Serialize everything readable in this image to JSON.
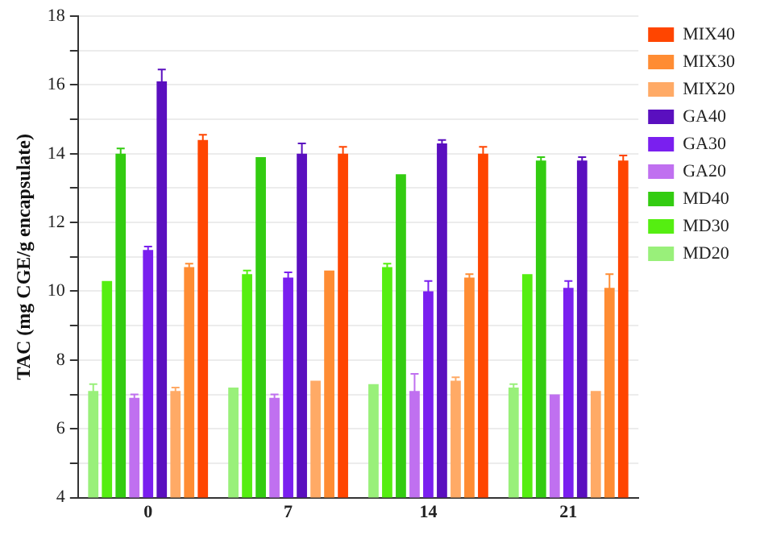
{
  "chart_data": {
    "type": "bar",
    "ylabel": "TAC (mg CGE/g encapsulate)",
    "categories": [
      "0",
      "7",
      "14",
      "21"
    ],
    "ylim": [
      4,
      18
    ],
    "yticks": [
      4,
      {
        "value": 5,
        "label": null
      },
      6,
      {
        "value": 7,
        "label": null
      },
      8,
      {
        "value": 9,
        "label": null
      },
      10,
      {
        "value": 11,
        "label": null
      },
      12,
      {
        "value": 13,
        "label": null
      },
      14,
      {
        "value": 15,
        "label": null
      },
      16,
      {
        "value": 17,
        "label": null
      },
      18
    ],
    "grid": "y",
    "legend": "top right",
    "series": [
      {
        "name": "MD20",
        "color": "#99f07a",
        "values": [
          7.1,
          7.2,
          7.3,
          7.2
        ],
        "errors": [
          0.2,
          null,
          null,
          0.1
        ]
      },
      {
        "name": "MD30",
        "color": "#55ee11",
        "values": [
          10.3,
          10.5,
          10.7,
          10.5
        ],
        "errors": [
          null,
          0.1,
          0.1,
          null
        ]
      },
      {
        "name": "MD40",
        "color": "#33cc11",
        "values": [
          14.0,
          13.9,
          13.4,
          13.8
        ],
        "errors": [
          0.15,
          null,
          null,
          0.1
        ]
      },
      {
        "name": "GA20",
        "color": "#c070f0",
        "values": [
          6.9,
          6.9,
          7.1,
          7.0
        ],
        "errors": [
          0.1,
          0.1,
          0.5,
          null
        ]
      },
      {
        "name": "GA30",
        "color": "#7a1fef",
        "values": [
          11.2,
          10.4,
          10.0,
          10.1
        ],
        "errors": [
          0.1,
          0.15,
          0.3,
          0.2
        ]
      },
      {
        "name": "GA40",
        "color": "#5a0fbf",
        "values": [
          16.1,
          14.0,
          14.3,
          13.8
        ],
        "errors": [
          0.35,
          0.3,
          0.1,
          0.1
        ]
      },
      {
        "name": "MIX20",
        "color": "#ffaa66",
        "values": [
          7.1,
          7.4,
          7.4,
          7.1
        ],
        "errors": [
          0.1,
          null,
          0.1,
          null
        ]
      },
      {
        "name": "MIX30",
        "color": "#ff8c33",
        "values": [
          10.7,
          10.6,
          10.4,
          10.1
        ],
        "errors": [
          0.1,
          null,
          0.1,
          0.4
        ]
      },
      {
        "name": "MIX40",
        "color": "#ff4500",
        "values": [
          14.4,
          14.0,
          14.0,
          13.8
        ],
        "errors": [
          0.15,
          0.2,
          0.2,
          0.15
        ]
      }
    ]
  }
}
